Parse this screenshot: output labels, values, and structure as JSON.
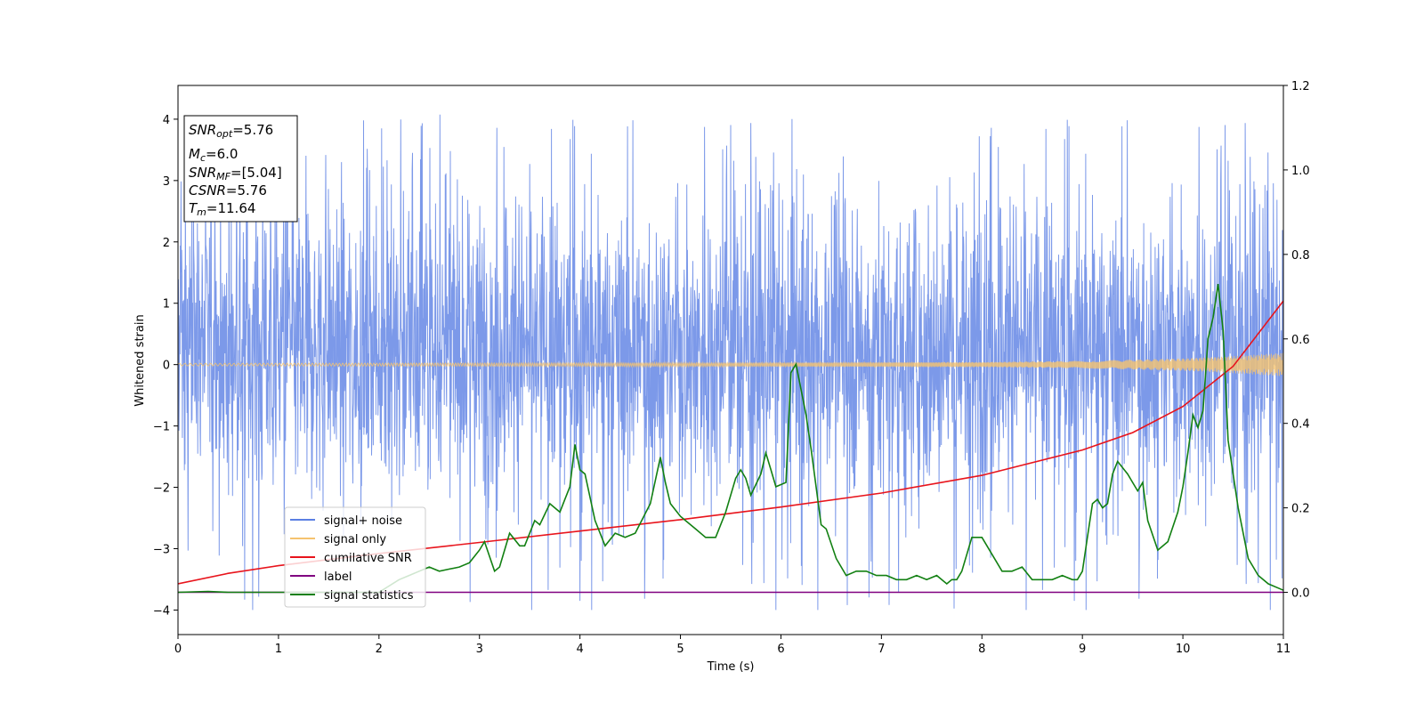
{
  "chart_data": {
    "type": "line",
    "xlabel": "Time (s)",
    "ylabel": "Whitened strain",
    "xlim": [
      0,
      11
    ],
    "ylim": [
      -4.4,
      4.55
    ],
    "y2lim": [
      -0.1,
      1.2
    ],
    "xticks": [
      "0",
      "1",
      "2",
      "3",
      "4",
      "5",
      "6",
      "7",
      "8",
      "9",
      "10",
      "11"
    ],
    "yticks": [
      "4",
      "3",
      "2",
      "1",
      "0",
      "−1",
      "−2",
      "−3",
      "−4"
    ],
    "y2ticks": [
      "1.2",
      "1.0",
      "0.8",
      "0.6",
      "0.4",
      "0.2",
      "0.0"
    ],
    "grid": false,
    "legend_position": "lower-left",
    "legend": [
      {
        "label": "signal+ noise",
        "color": "#5b7fe3"
      },
      {
        "label": "signal only",
        "color": "#f5c36f"
      },
      {
        "label": "cumilative SNR",
        "color": "#e8141c"
      },
      {
        "label": "label",
        "color": "#800080"
      },
      {
        "label": "signal statistics",
        "color": "#128012"
      }
    ],
    "info_box": {
      "snr_opt": {
        "sym": "SNR",
        "sub": "opt",
        "val": "=5.76"
      },
      "mc": {
        "sym": "M",
        "sub": "c",
        "val": "=6.0"
      },
      "snr_mf": {
        "sym": "SNR",
        "sub": "MF",
        "val": "=[5.04]"
      },
      "csnr": {
        "sym": "CSNR",
        "val": "=5.76"
      },
      "tm": {
        "sym": "T",
        "sub": "m",
        "val": "=11.64"
      }
    },
    "series": [
      {
        "name": "signal+ noise",
        "axis": "left",
        "color": "#5b7fe3",
        "summary": {
          "t_range": [
            0,
            11
          ],
          "typical_band": [
            -2.0,
            2.5
          ],
          "max": 4.2,
          "min": -4.0
        }
      },
      {
        "name": "signal only",
        "axis": "left",
        "color": "#f5c36f",
        "envelope": {
          "t": [
            0,
            5,
            8,
            9,
            10,
            10.5,
            11
          ],
          "amp": [
            0.02,
            0.03,
            0.04,
            0.06,
            0.1,
            0.14,
            0.19
          ]
        }
      },
      {
        "name": "cumilative SNR",
        "axis": "right",
        "x": [
          0,
          0.5,
          1,
          2,
          3,
          4,
          5,
          6,
          7,
          8,
          9,
          9.5,
          10,
          10.5,
          11
        ],
        "values": [
          0.02,
          0.045,
          0.063,
          0.092,
          0.118,
          0.145,
          0.172,
          0.202,
          0.235,
          0.277,
          0.337,
          0.378,
          0.44,
          0.535,
          0.69
        ]
      },
      {
        "name": "label",
        "axis": "right",
        "x": [
          0,
          11
        ],
        "values": [
          0.0,
          0.0
        ]
      },
      {
        "name": "signal statistics",
        "axis": "right",
        "x": [
          0,
          0.3,
          0.5,
          1.0,
          1.5,
          2.0,
          2.2,
          2.3,
          2.4,
          2.5,
          2.6,
          2.7,
          2.8,
          2.9,
          3.0,
          3.05,
          3.15,
          3.2,
          3.3,
          3.4,
          3.45,
          3.55,
          3.6,
          3.7,
          3.75,
          3.8,
          3.85,
          3.9,
          3.95,
          4.0,
          4.05,
          4.15,
          4.25,
          4.35,
          4.45,
          4.55,
          4.7,
          4.8,
          4.85,
          4.9,
          5.0,
          5.05,
          5.15,
          5.25,
          5.35,
          5.45,
          5.55,
          5.6,
          5.65,
          5.7,
          5.8,
          5.85,
          5.9,
          5.95,
          6.05,
          6.1,
          6.15,
          6.25,
          6.3,
          6.4,
          6.45,
          6.55,
          6.65,
          6.75,
          6.85,
          6.95,
          7.05,
          7.15,
          7.25,
          7.35,
          7.45,
          7.55,
          7.65,
          7.7,
          7.75,
          7.8,
          7.9,
          8.0,
          8.1,
          8.2,
          8.3,
          8.4,
          8.5,
          8.6,
          8.7,
          8.8,
          8.9,
          8.95,
          9.0,
          9.05,
          9.1,
          9.15,
          9.2,
          9.25,
          9.3,
          9.35,
          9.45,
          9.55,
          9.6,
          9.65,
          9.75,
          9.85,
          9.95,
          10.0,
          10.05,
          10.1,
          10.15,
          10.2,
          10.25,
          10.3,
          10.35,
          10.4,
          10.45,
          10.55,
          10.65,
          10.75,
          10.85,
          10.95,
          11.0
        ],
        "values": [
          0.0,
          0.002,
          0.0,
          0.0,
          0.0,
          0.0,
          0.03,
          0.04,
          0.05,
          0.06,
          0.05,
          0.055,
          0.06,
          0.07,
          0.1,
          0.12,
          0.05,
          0.06,
          0.14,
          0.11,
          0.11,
          0.17,
          0.16,
          0.21,
          0.2,
          0.19,
          0.22,
          0.25,
          0.35,
          0.29,
          0.28,
          0.17,
          0.11,
          0.14,
          0.13,
          0.14,
          0.21,
          0.32,
          0.26,
          0.21,
          0.18,
          0.17,
          0.15,
          0.13,
          0.13,
          0.19,
          0.27,
          0.29,
          0.27,
          0.23,
          0.28,
          0.33,
          0.29,
          0.25,
          0.26,
          0.52,
          0.54,
          0.42,
          0.34,
          0.16,
          0.15,
          0.08,
          0.04,
          0.05,
          0.05,
          0.04,
          0.04,
          0.03,
          0.03,
          0.04,
          0.03,
          0.04,
          0.02,
          0.03,
          0.03,
          0.05,
          0.13,
          0.13,
          0.09,
          0.05,
          0.05,
          0.06,
          0.03,
          0.03,
          0.03,
          0.04,
          0.03,
          0.03,
          0.05,
          0.13,
          0.21,
          0.22,
          0.2,
          0.21,
          0.28,
          0.31,
          0.28,
          0.24,
          0.26,
          0.17,
          0.1,
          0.12,
          0.19,
          0.25,
          0.33,
          0.42,
          0.39,
          0.43,
          0.6,
          0.65,
          0.73,
          0.62,
          0.36,
          0.2,
          0.08,
          0.04,
          0.02,
          0.01,
          0.005
        ]
      }
    ]
  }
}
